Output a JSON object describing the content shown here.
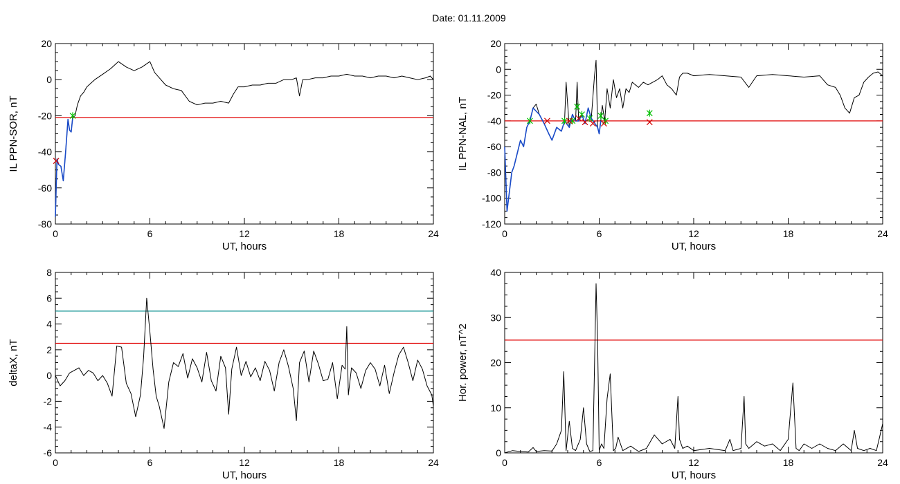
{
  "title": "Date:  01.11.2009",
  "colors": {
    "threshold_red": "#e00000",
    "threshold_teal": "#008b8b",
    "trace": "#000000",
    "substorm": "#1a4bc8",
    "onset_marker": "#00c000",
    "end_marker": "#d00000"
  },
  "chart_data": [
    {
      "type": "line",
      "xlabel": "UT, hours",
      "ylabel": "IL PPN-SOR, nT",
      "xlim": [
        0,
        24
      ],
      "ylim": [
        -80,
        20
      ],
      "x_ticks": [
        "0",
        "6",
        "12",
        "18",
        "24"
      ],
      "y_ticks": [
        "-80",
        "-60",
        "-40",
        "-20",
        "0",
        "20"
      ],
      "threshold": -21,
      "series": [
        {
          "x": [
            0,
            0.1,
            0.2,
            0.35,
            0.5,
            0.65,
            0.8,
            0.9,
            1.0,
            1.1,
            1.25,
            1.4,
            1.6,
            1.8,
            2.0,
            2.5,
            3.0,
            3.5,
            4.0,
            4.5,
            5.0,
            5.5,
            6.0,
            6.3,
            6.7,
            7.0,
            7.5,
            8.0,
            8.5,
            9.0,
            9.5,
            10.0,
            10.5,
            11.0,
            11.3,
            11.6,
            12.0,
            12.5,
            13.0,
            13.5,
            14.0,
            14.5,
            15.0,
            15.3,
            15.5,
            15.7,
            16.0,
            16.5,
            17.0,
            17.5,
            18.0,
            18.5,
            19.0,
            19.5,
            20.0,
            20.5,
            21.0,
            21.5,
            22.0,
            22.5,
            23.0,
            23.5,
            23.8,
            24.0
          ],
          "y": [
            -76,
            -44,
            -47,
            -48,
            -56,
            -40,
            -22,
            -28,
            -29,
            -21,
            -20,
            -14,
            -9,
            -7,
            -4,
            0,
            3,
            6,
            10,
            7,
            5,
            7,
            10,
            4,
            0,
            -3,
            -5,
            -6,
            -12,
            -14,
            -13,
            -13,
            -12,
            -13,
            -8,
            -4,
            -4,
            -3,
            -3,
            -2,
            -2,
            0,
            0,
            1,
            -9,
            0,
            0,
            1,
            1,
            2,
            2,
            3,
            2,
            2,
            1,
            2,
            2,
            1,
            2,
            1,
            0,
            1,
            2,
            0
          ]
        },
        {
          "name": "substorm",
          "x": [
            0,
            0.1,
            0.2,
            0.35,
            0.5,
            0.65,
            0.8,
            0.9,
            1.0,
            1.1
          ],
          "y": [
            -76,
            -44,
            -47,
            -48,
            -56,
            -40,
            -22,
            -28,
            -29,
            -21
          ]
        }
      ],
      "markers": {
        "onset": [
          {
            "x": 1.1,
            "y": -20
          }
        ],
        "end": [
          {
            "x": 0.05,
            "y": -45
          }
        ]
      }
    },
    {
      "type": "line",
      "xlabel": "UT, hours",
      "ylabel": "IL PPN-NAL, nT",
      "xlim": [
        0,
        24
      ],
      "ylim": [
        -120,
        20
      ],
      "x_ticks": [
        "0",
        "6",
        "12",
        "18",
        "24"
      ],
      "y_ticks": [
        "-120",
        "-100",
        "-80",
        "-60",
        "-40",
        "-20",
        "0",
        "20"
      ],
      "threshold": -40,
      "series": [
        {
          "x": [
            0,
            0.15,
            0.3,
            0.45,
            0.6,
            0.8,
            1.0,
            1.2,
            1.4,
            1.6,
            1.8,
            2.0,
            2.2,
            2.5,
            2.8,
            3.0,
            3.3,
            3.6,
            3.8,
            3.9,
            4.1,
            4.3,
            4.5,
            4.6,
            4.7,
            4.9,
            5.1,
            5.3,
            5.5,
            5.7,
            5.8,
            5.9,
            6.0,
            6.1,
            6.2,
            6.35,
            6.5,
            6.7,
            6.9,
            7.1,
            7.3,
            7.5,
            7.7,
            7.9,
            8.1,
            8.3,
            8.5,
            8.8,
            9.1,
            9.4,
            9.7,
            10.0,
            10.3,
            10.6,
            10.9,
            11.1,
            11.3,
            11.6,
            12.0,
            13.0,
            14.0,
            15.0,
            15.5,
            16.0,
            17.0,
            18.0,
            19.0,
            20.0,
            20.5,
            21.0,
            21.3,
            21.6,
            21.9,
            22.2,
            22.5,
            22.8,
            23.1,
            23.4,
            23.7,
            24.0
          ],
          "y": [
            -60,
            -110,
            -95,
            -80,
            -75,
            -65,
            -55,
            -60,
            -45,
            -40,
            -30,
            -27,
            -35,
            -42,
            -50,
            -55,
            -45,
            -48,
            -40,
            -10,
            -45,
            -35,
            -40,
            -10,
            -40,
            -35,
            -42,
            -30,
            -38,
            -5,
            7,
            -45,
            -50,
            -40,
            -28,
            -40,
            -15,
            -30,
            -8,
            -22,
            -15,
            -30,
            -15,
            -18,
            -10,
            -12,
            -14,
            -10,
            -12,
            -10,
            -8,
            -5,
            -12,
            -15,
            -20,
            -6,
            -3,
            -3,
            -5,
            -4,
            -5,
            -6,
            -14,
            -5,
            -4,
            -5,
            -6,
            -5,
            -12,
            -14,
            -20,
            -30,
            -34,
            -22,
            -20,
            -10,
            -6,
            -3,
            -2,
            -5
          ]
        },
        {
          "name": "substorm",
          "x": [
            0,
            0.15,
            0.3,
            0.45,
            0.6,
            0.8,
            1.0,
            1.2,
            1.4,
            1.6,
            1.8,
            2.2,
            2.5,
            2.8,
            3.0,
            3.3,
            3.6,
            3.8,
            4.1,
            4.3,
            4.5,
            4.7,
            4.9,
            5.1,
            5.3,
            5.5,
            5.9,
            6.0,
            6.1
          ],
          "y": [
            -60,
            -110,
            -95,
            -80,
            -75,
            -65,
            -55,
            -60,
            -45,
            -40,
            -30,
            -35,
            -42,
            -50,
            -55,
            -45,
            -48,
            -40,
            -45,
            -35,
            -40,
            -40,
            -35,
            -42,
            -30,
            -38,
            -45,
            -50,
            -40
          ]
        }
      ],
      "markers": {
        "onset": [
          {
            "x": 1.6,
            "y": -40
          },
          {
            "x": 3.8,
            "y": -40
          },
          {
            "x": 4.3,
            "y": -40
          },
          {
            "x": 4.6,
            "y": -29
          },
          {
            "x": 4.9,
            "y": -35
          },
          {
            "x": 5.4,
            "y": -38
          },
          {
            "x": 6.1,
            "y": -36
          },
          {
            "x": 6.4,
            "y": -40
          },
          {
            "x": 9.2,
            "y": -34
          }
        ],
        "end": [
          {
            "x": 2.7,
            "y": -40
          },
          {
            "x": 4.1,
            "y": -40
          },
          {
            "x": 4.7,
            "y": -38
          },
          {
            "x": 5.1,
            "y": -41
          },
          {
            "x": 5.6,
            "y": -42
          },
          {
            "x": 6.3,
            "y": -42
          },
          {
            "x": 9.2,
            "y": -41
          }
        ]
      }
    },
    {
      "type": "line",
      "xlabel": "UT, hours",
      "ylabel": "deltaX, nT",
      "xlim": [
        0,
        24
      ],
      "ylim": [
        -6,
        8
      ],
      "x_ticks": [
        "0",
        "6",
        "12",
        "18",
        "24"
      ],
      "y_ticks": [
        "-6",
        "-4",
        "-2",
        "0",
        "2",
        "4",
        "6",
        "8"
      ],
      "thresholds": [
        5,
        2.5
      ],
      "series": [
        {
          "x": [
            0,
            0.3,
            0.6,
            0.9,
            1.2,
            1.5,
            1.8,
            2.1,
            2.4,
            2.7,
            3.0,
            3.3,
            3.6,
            3.9,
            4.2,
            4.5,
            4.8,
            5.1,
            5.4,
            5.6,
            5.8,
            6.0,
            6.2,
            6.4,
            6.6,
            6.9,
            7.2,
            7.5,
            7.8,
            8.1,
            8.4,
            8.7,
            9.0,
            9.3,
            9.6,
            9.9,
            10.2,
            10.5,
            10.8,
            11.0,
            11.2,
            11.5,
            11.8,
            12.1,
            12.4,
            12.7,
            13.0,
            13.3,
            13.6,
            13.9,
            14.2,
            14.5,
            14.8,
            15.1,
            15.3,
            15.5,
            15.8,
            16.1,
            16.4,
            16.7,
            17.0,
            17.3,
            17.6,
            17.9,
            18.2,
            18.4,
            18.5,
            18.6,
            18.8,
            19.1,
            19.4,
            19.7,
            20.0,
            20.3,
            20.6,
            20.9,
            21.2,
            21.5,
            21.8,
            22.1,
            22.4,
            22.7,
            23.0,
            23.3,
            23.6,
            23.9,
            24.0
          ],
          "y": [
            0,
            -0.8,
            -0.4,
            0.2,
            0.4,
            0.6,
            0,
            0.4,
            0.2,
            -0.4,
            0,
            -0.6,
            -1.6,
            2.3,
            2.2,
            -0.6,
            -1.4,
            -3.2,
            -1.5,
            1.4,
            6.0,
            3.4,
            0.5,
            -1.6,
            -2.4,
            -4.1,
            -0.5,
            1.0,
            0.7,
            1.7,
            -0.2,
            1.3,
            0.6,
            -0.5,
            1.8,
            -0.4,
            -1.2,
            1.5,
            0.6,
            -3.0,
            0.5,
            2.2,
            0,
            1.1,
            -0.1,
            0.6,
            -0.4,
            1.1,
            0.4,
            -1.2,
            1.0,
            2.0,
            0.7,
            -1.0,
            -3.5,
            1.0,
            1.9,
            -0.5,
            1.9,
            0.9,
            -0.4,
            -0.3,
            1.0,
            -1.8,
            0.8,
            0.5,
            3.8,
            -1.5,
            0.6,
            0.2,
            -1.0,
            0.4,
            1.0,
            0.5,
            -0.8,
            0.8,
            -1.4,
            0.2,
            1.6,
            2.2,
            1.0,
            -0.4,
            1.2,
            0.5,
            -0.8,
            -1.5,
            -2.4
          ]
        }
      ]
    },
    {
      "type": "line",
      "xlabel": "UT, hours",
      "ylabel": "Hor. power, nT^2",
      "xlim": [
        0,
        24
      ],
      "ylim": [
        0,
        40
      ],
      "x_ticks": [
        "0",
        "6",
        "12",
        "18",
        "24"
      ],
      "y_ticks": [
        "0",
        "10",
        "20",
        "30",
        "40"
      ],
      "threshold": 25,
      "series": [
        {
          "x": [
            0,
            0.5,
            1.0,
            1.5,
            1.8,
            2.0,
            2.5,
            3.0,
            3.3,
            3.6,
            3.75,
            3.9,
            4.1,
            4.3,
            4.5,
            4.8,
            5.0,
            5.2,
            5.4,
            5.6,
            5.8,
            5.9,
            6.0,
            6.15,
            6.3,
            6.5,
            6.7,
            6.9,
            7.05,
            7.2,
            7.5,
            8.0,
            8.5,
            9.0,
            9.5,
            10.0,
            10.5,
            10.8,
            11.0,
            11.1,
            11.3,
            11.6,
            12.0,
            13.0,
            14.0,
            14.3,
            14.5,
            15.0,
            15.2,
            15.3,
            15.5,
            16.0,
            16.5,
            17.0,
            17.5,
            18.0,
            18.3,
            18.5,
            18.7,
            19.0,
            19.5,
            20.0,
            20.5,
            21.0,
            21.5,
            22.0,
            22.2,
            22.4,
            22.8,
            23.2,
            23.6,
            23.8,
            24.0
          ],
          "y": [
            0,
            0.5,
            0.3,
            0.2,
            1.2,
            0.3,
            0.5,
            0.4,
            2.0,
            5.0,
            18.0,
            0.5,
            7.0,
            1.0,
            0.5,
            3.0,
            10.0,
            2.0,
            0.3,
            0.5,
            37.5,
            25.0,
            0.5,
            2.0,
            1.0,
            12.0,
            17.5,
            0.5,
            1.0,
            3.5,
            0.5,
            1.5,
            0.3,
            1.0,
            4.0,
            2.0,
            3.0,
            1.0,
            12.5,
            3.0,
            1.0,
            1.5,
            0.5,
            1.0,
            0.5,
            3.0,
            0.5,
            1.0,
            12.5,
            2.0,
            1.0,
            2.5,
            1.5,
            2.0,
            0.5,
            3.0,
            15.5,
            1.0,
            0.5,
            2.0,
            1.0,
            2.0,
            1.0,
            0.5,
            2.0,
            0.5,
            5.0,
            1.0,
            0.5,
            1.0,
            0.5,
            3.5,
            6.5
          ]
        }
      ]
    }
  ]
}
